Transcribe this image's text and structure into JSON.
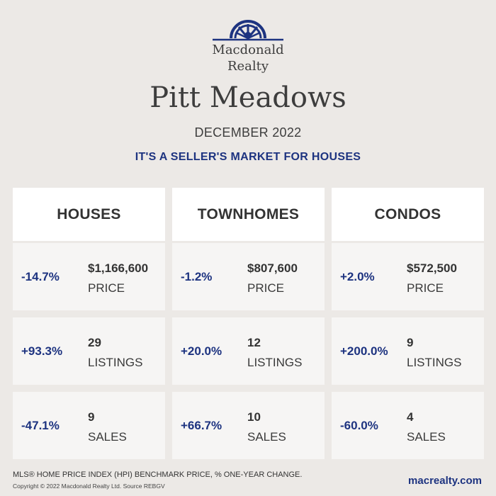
{
  "brand": {
    "line1": "Macdonald",
    "line2": "Realty",
    "logo_icon": "macdonald-realty-arch-logo",
    "color": "#1d3380"
  },
  "title": "Pitt Meadows",
  "date": "DECEMBER 2022",
  "headline": "IT'S A SELLER'S MARKET FOR HOUSES",
  "columns": [
    {
      "name": "HOUSES",
      "price": {
        "change": "-14.7%",
        "value": "$1,166,600",
        "label": "PRICE"
      },
      "listings": {
        "change": "+93.3%",
        "value": "29",
        "label": "LISTINGS"
      },
      "sales": {
        "change": "-47.1%",
        "value": "9",
        "label": "SALES"
      }
    },
    {
      "name": "TOWNHOMES",
      "price": {
        "change": "-1.2%",
        "value": "$807,600",
        "label": "PRICE"
      },
      "listings": {
        "change": "+20.0%",
        "value": "12",
        "label": "LISTINGS"
      },
      "sales": {
        "change": "+66.7%",
        "value": "10",
        "label": "SALES"
      }
    },
    {
      "name": "CONDOS",
      "price": {
        "change": "+2.0%",
        "value": "$572,500",
        "label": "PRICE"
      },
      "listings": {
        "change": "+200.0%",
        "value": "9",
        "label": "LISTINGS"
      },
      "sales": {
        "change": "-60.0%",
        "value": "4",
        "label": "SALES"
      }
    }
  ],
  "footer": {
    "note": "MLS® HOME PRICE INDEX (HPI) BENCHMARK PRICE, % ONE-YEAR CHANGE.",
    "copyright": "Copyright © 2022 Macdonald Realty Ltd. Source REBGV",
    "website": "macrealty.com"
  }
}
